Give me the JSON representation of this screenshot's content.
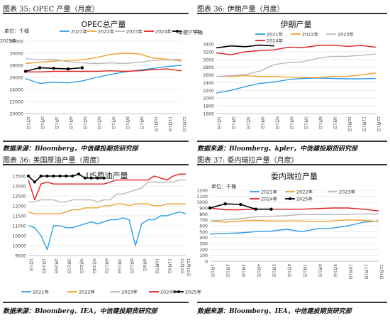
{
  "figures": [
    {
      "caption": "图表 35: OPEC 产量（月度）",
      "source": "数据来源：Bloomberg，中信建投期货研究部"
    },
    {
      "caption": "图表 36: 伊朗产量（月度）",
      "source": "数据来源：Bloomberg、kpler，中信建投期货研究部"
    },
    {
      "caption": "图表 36: 美国原油产量（周度）",
      "source": "数据来源：Bloomberg、IEA，中信建投期货研究部"
    },
    {
      "caption": "图表 37: 委内瑞拉产量（月度）",
      "source": "数据来源：Bloomberg、IEA，中信建投期货研究部"
    }
  ],
  "colors": {
    "2021年": "#2e9ee6",
    "2022年": "#f0a030",
    "2023年": "#b9b9b9",
    "2024年": "#e02020",
    "2025年": "#000000"
  },
  "chart_data": [
    {
      "type": "line",
      "title": "OPEC总产量",
      "ylabel": "单位：千桶",
      "ylim": [
        20000,
        32000
      ],
      "yticks": [
        20000,
        22000,
        24000,
        26000,
        28000,
        30000,
        32000
      ],
      "categories": [
        "1月1日",
        "2月1日",
        "3月1日",
        "4月1日",
        "5月1日",
        "6月1日",
        "7月1日",
        "8月1日",
        "9月1日",
        "10月1日",
        "11月1日",
        "12月1日"
      ],
      "legend_position": "top",
      "grid": true,
      "series": [
        {
          "name": "2021年",
          "values": [
            25800,
            25000,
            25200,
            25100,
            25400,
            26000,
            26500,
            26900,
            27200,
            27500,
            27800,
            28000
          ]
        },
        {
          "name": "2022年",
          "values": [
            28300,
            28500,
            28700,
            28800,
            28900,
            29300,
            29800,
            30000,
            29900,
            29200,
            29000,
            28700
          ]
        },
        {
          "name": "2023年",
          "values": [
            29100,
            28900,
            29000,
            28600,
            28400,
            28300,
            28400,
            28300,
            28500,
            28800,
            28900,
            29000
          ]
        },
        {
          "name": "2024年",
          "values": [
            26900,
            26900,
            27000,
            27000,
            27000,
            27000,
            27100,
            27000,
            27100,
            27300,
            27400,
            27100
          ]
        },
        {
          "name": "2025年",
          "values": [
            27000,
            27600,
            27500,
            27400,
            27600,
            null,
            null,
            null,
            null,
            null,
            null,
            null
          ]
        }
      ]
    },
    {
      "type": "line",
      "title": "伊朗产量",
      "ylabel": "单位：千桶",
      "ylim": [
        1600,
        3400
      ],
      "yticks": [
        1600,
        1800,
        2000,
        2200,
        2400,
        2600,
        2800,
        3000,
        3200,
        3400
      ],
      "categories": [
        "1月1日",
        "2月1日",
        "3月1日",
        "4月1日",
        "5月1日",
        "6月1日",
        "7月1日",
        "8月1日",
        "9月1日",
        "10月1日",
        "11月1日",
        "12月1日"
      ],
      "legend_position": "top",
      "grid": true,
      "series": [
        {
          "name": "2021年",
          "values": [
            2130,
            2200,
            2300,
            2380,
            2420,
            2480,
            2510,
            2520,
            2510,
            2500,
            2500,
            2510
          ]
        },
        {
          "name": "2022年",
          "values": [
            2560,
            2560,
            2580,
            2560,
            2560,
            2540,
            2540,
            2530,
            2560,
            2560,
            2600,
            2650
          ]
        },
        {
          "name": "2023年",
          "values": [
            2560,
            2580,
            2610,
            2700,
            2870,
            2920,
            2940,
            3030,
            3080,
            3080,
            3110,
            3140
          ]
        },
        {
          "name": "2024年",
          "values": [
            3170,
            3120,
            3200,
            3230,
            3250,
            3320,
            3310,
            3360,
            3370,
            3340,
            3360,
            3320
          ]
        },
        {
          "name": "2025年",
          "values": [
            3300,
            3350,
            3330,
            3370,
            3350,
            null,
            null,
            null,
            null,
            null,
            null,
            null
          ]
        }
      ]
    },
    {
      "type": "line",
      "title": "US原油产量",
      "ylabel": "",
      "ylim": [
        9500,
        13500
      ],
      "yticks": [
        9500,
        10000,
        10500,
        11000,
        11500,
        12000,
        12500,
        13000,
        13500
      ],
      "categories": [
        "1月1日",
        "1月15日",
        "1月29日",
        "2月12日",
        "2月26日",
        "3月11日",
        "3月25日",
        "4月8日",
        "4月22日",
        "5月6日",
        "5月20日",
        "6月3日",
        "6月17日",
        "7月1日",
        "7月15日",
        "7月29日",
        "8月12日",
        "8月26日",
        "9月9日",
        "9月23日",
        "10月7日",
        "10月21日",
        "11月4日",
        "11月18日",
        "12月2日",
        "12月16日"
      ],
      "legend_position": "bottom",
      "grid": true,
      "series": [
        {
          "name": "2021年",
          "values": [
            11000,
            10900,
            10500,
            9800,
            11000,
            11000,
            10900,
            10900,
            11000,
            11100,
            11200,
            11100,
            11200,
            11300,
            11300,
            11400,
            11300,
            10000,
            11100,
            11300,
            11300,
            11500,
            11500,
            11600,
            11700,
            11600
          ]
        },
        {
          "name": "2022年",
          "values": [
            11700,
            11600,
            11600,
            11600,
            11600,
            11600,
            11700,
            11800,
            11800,
            11900,
            11900,
            11900,
            12000,
            12000,
            12100,
            12100,
            12000,
            12100,
            12100,
            12100,
            12000,
            12000,
            12100,
            12100,
            12100,
            12100
          ]
        },
        {
          "name": "2023年",
          "values": [
            12200,
            12200,
            12300,
            12300,
            12300,
            12200,
            12200,
            12300,
            12300,
            12300,
            12300,
            12200,
            12300,
            12300,
            12600,
            12600,
            12700,
            12800,
            12900,
            13200,
            13200,
            13200,
            13200,
            13200,
            13300,
            13300
          ]
        },
        {
          "name": "2024年",
          "values": [
            13300,
            12300,
            13100,
            13200,
            13100,
            13100,
            13100,
            13100,
            13100,
            13100,
            13100,
            13100,
            13100,
            13200,
            13300,
            13300,
            13300,
            13300,
            13300,
            13300,
            13500,
            13400,
            13300,
            13500,
            13600,
            13600
          ]
        },
        {
          "name": "2025年",
          "values": [
            13500,
            13200,
            13500,
            13500,
            13500,
            13500,
            13500,
            13500,
            13600,
            13400,
            13400,
            13400,
            13400,
            null,
            null,
            null,
            null,
            null,
            null,
            null,
            null,
            null,
            null,
            null,
            null,
            null
          ]
        }
      ]
    },
    {
      "type": "line",
      "title": "委内瑞拉产量",
      "ylabel": "单位：千桶",
      "ylim": [
        0,
        1200
      ],
      "yticks": [
        0,
        100,
        200,
        300,
        400,
        500,
        600,
        700,
        800,
        900,
        1000,
        1100,
        1200
      ],
      "categories": [
        "1月1日",
        "2月1日",
        "3月1日",
        "4月1日",
        "5月1日",
        "6月1日",
        "7月1日",
        "8月1日",
        "9月1日",
        "10月1日",
        "11月1日",
        "12月1日"
      ],
      "legend_position": "top",
      "grid": true,
      "series": [
        {
          "name": "2021年",
          "values": [
            460,
            470,
            480,
            500,
            510,
            540,
            500,
            550,
            560,
            600,
            660,
            680
          ]
        },
        {
          "name": "2022年",
          "values": [
            680,
            660,
            680,
            690,
            680,
            680,
            680,
            670,
            680,
            700,
            690,
            670
          ]
        },
        {
          "name": "2023年",
          "values": [
            680,
            700,
            720,
            750,
            760,
            770,
            790,
            790,
            790,
            790,
            800,
            800
          ]
        },
        {
          "name": "2024年",
          "values": [
            900,
            870,
            870,
            880,
            880,
            880,
            880,
            890,
            900,
            900,
            880,
            850
          ]
        },
        {
          "name": "2025年",
          "values": [
            900,
            970,
            960,
            880,
            880,
            null,
            null,
            null,
            null,
            null,
            null,
            null
          ]
        }
      ]
    }
  ]
}
